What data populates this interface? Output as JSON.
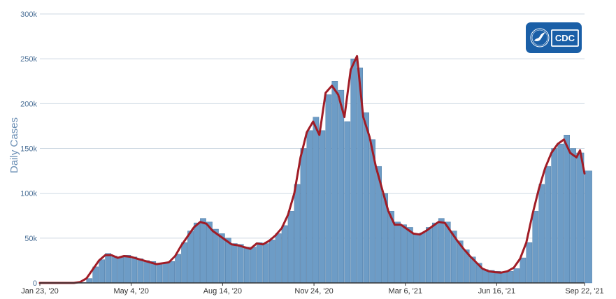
{
  "chart_data": {
    "type": "bar",
    "ylabel": "Daily Cases",
    "ylim": [
      0,
      300000
    ],
    "y_ticks": [
      "0",
      "50k",
      "100k",
      "150k",
      "200k",
      "250k",
      "300k"
    ],
    "y_tick_values": [
      0,
      50000,
      100000,
      150000,
      200000,
      250000,
      300000
    ],
    "x_range": [
      "2020-01-23",
      "2021-09-22"
    ],
    "x_ticks": [
      {
        "date": "2020-01-23",
        "label": "Jan 23, '20"
      },
      {
        "date": "2020-05-04",
        "label": "May 4, '20"
      },
      {
        "date": "2020-08-14",
        "label": "Aug 14, '20"
      },
      {
        "date": "2020-11-24",
        "label": "Nov 24, '20"
      },
      {
        "date": "2021-03-06",
        "label": "Mar 6, '21"
      },
      {
        "date": "2021-06-16",
        "label": "Jun 16, '21"
      },
      {
        "date": "2021-09-22",
        "label": "Sep 22, '21"
      }
    ],
    "grid": true,
    "colors": {
      "bars": "#6d9cc6",
      "bar_edge": "#3f6f9c",
      "average_line": "#a01c26",
      "grid": "#cfd9e3",
      "axis": "#333333"
    },
    "series": [
      {
        "type": "bar",
        "points": [
          [
            "2020-01-23",
            0
          ],
          [
            "2020-02-15",
            0
          ],
          [
            "2020-03-01",
            100
          ],
          [
            "2020-03-08",
            500
          ],
          [
            "2020-03-15",
            5000
          ],
          [
            "2020-03-22",
            18000
          ],
          [
            "2020-03-29",
            26000
          ],
          [
            "2020-04-05",
            33000
          ],
          [
            "2020-04-12",
            30000
          ],
          [
            "2020-04-19",
            29000
          ],
          [
            "2020-04-26",
            31000
          ],
          [
            "2020-05-04",
            29000
          ],
          [
            "2020-05-11",
            27000
          ],
          [
            "2020-05-18",
            25000
          ],
          [
            "2020-05-25",
            24000
          ],
          [
            "2020-06-01",
            21000
          ],
          [
            "2020-06-08",
            22000
          ],
          [
            "2020-06-15",
            24000
          ],
          [
            "2020-06-22",
            32000
          ],
          [
            "2020-06-29",
            45000
          ],
          [
            "2020-07-06",
            58000
          ],
          [
            "2020-07-13",
            67000
          ],
          [
            "2020-07-20",
            72000
          ],
          [
            "2020-07-27",
            68000
          ],
          [
            "2020-08-03",
            60000
          ],
          [
            "2020-08-10",
            55000
          ],
          [
            "2020-08-17",
            50000
          ],
          [
            "2020-08-24",
            44000
          ],
          [
            "2020-08-31",
            43000
          ],
          [
            "2020-09-07",
            40000
          ],
          [
            "2020-09-14",
            40000
          ],
          [
            "2020-09-21",
            45000
          ],
          [
            "2020-09-28",
            44000
          ],
          [
            "2020-10-05",
            48000
          ],
          [
            "2020-10-12",
            55000
          ],
          [
            "2020-10-19",
            64000
          ],
          [
            "2020-10-26",
            80000
          ],
          [
            "2020-11-02",
            110000
          ],
          [
            "2020-11-09",
            150000
          ],
          [
            "2020-11-16",
            170000
          ],
          [
            "2020-11-23",
            185000
          ],
          [
            "2020-11-30",
            170000
          ],
          [
            "2020-12-07",
            210000
          ],
          [
            "2020-12-14",
            225000
          ],
          [
            "2020-12-21",
            215000
          ],
          [
            "2020-12-28",
            180000
          ],
          [
            "2021-01-04",
            250000
          ],
          [
            "2021-01-11",
            240000
          ],
          [
            "2021-01-18",
            190000
          ],
          [
            "2021-01-25",
            160000
          ],
          [
            "2021-02-01",
            130000
          ],
          [
            "2021-02-08",
            100000
          ],
          [
            "2021-02-15",
            80000
          ],
          [
            "2021-02-22",
            68000
          ],
          [
            "2021-03-01",
            65000
          ],
          [
            "2021-03-08",
            62000
          ],
          [
            "2021-03-15",
            55000
          ],
          [
            "2021-03-22",
            56000
          ],
          [
            "2021-03-29",
            62000
          ],
          [
            "2021-04-05",
            67000
          ],
          [
            "2021-04-12",
            72000
          ],
          [
            "2021-04-19",
            68000
          ],
          [
            "2021-04-26",
            58000
          ],
          [
            "2021-05-03",
            47000
          ],
          [
            "2021-05-10",
            37000
          ],
          [
            "2021-05-17",
            29000
          ],
          [
            "2021-05-24",
            22000
          ],
          [
            "2021-05-31",
            15000
          ],
          [
            "2021-06-07",
            14000
          ],
          [
            "2021-06-14",
            13000
          ],
          [
            "2021-06-21",
            12000
          ],
          [
            "2021-06-28",
            13000
          ],
          [
            "2021-07-05",
            16000
          ],
          [
            "2021-07-12",
            28000
          ],
          [
            "2021-07-19",
            45000
          ],
          [
            "2021-07-26",
            80000
          ],
          [
            "2021-08-02",
            110000
          ],
          [
            "2021-08-09",
            130000
          ],
          [
            "2021-08-16",
            150000
          ],
          [
            "2021-08-23",
            155000
          ],
          [
            "2021-08-30",
            165000
          ],
          [
            "2021-09-06",
            150000
          ],
          [
            "2021-09-13",
            145000
          ],
          [
            "2021-09-22",
            125000
          ]
        ]
      },
      {
        "type": "line",
        "points": [
          [
            "2020-01-23",
            0
          ],
          [
            "2020-03-01",
            0
          ],
          [
            "2020-03-08",
            1000
          ],
          [
            "2020-03-15",
            5000
          ],
          [
            "2020-03-22",
            15000
          ],
          [
            "2020-03-29",
            25000
          ],
          [
            "2020-04-05",
            31000
          ],
          [
            "2020-04-12",
            31000
          ],
          [
            "2020-04-19",
            28000
          ],
          [
            "2020-04-26",
            30000
          ],
          [
            "2020-05-04",
            29000
          ],
          [
            "2020-05-11",
            27000
          ],
          [
            "2020-05-18",
            25000
          ],
          [
            "2020-05-25",
            23000
          ],
          [
            "2020-06-01",
            21000
          ],
          [
            "2020-06-08",
            22000
          ],
          [
            "2020-06-15",
            23000
          ],
          [
            "2020-06-22",
            30000
          ],
          [
            "2020-06-29",
            42000
          ],
          [
            "2020-07-06",
            52000
          ],
          [
            "2020-07-13",
            62000
          ],
          [
            "2020-07-20",
            68000
          ],
          [
            "2020-07-27",
            66000
          ],
          [
            "2020-08-03",
            58000
          ],
          [
            "2020-08-10",
            53000
          ],
          [
            "2020-08-17",
            48000
          ],
          [
            "2020-08-24",
            43000
          ],
          [
            "2020-08-31",
            42000
          ],
          [
            "2020-09-07",
            40000
          ],
          [
            "2020-09-14",
            38000
          ],
          [
            "2020-09-21",
            44000
          ],
          [
            "2020-09-28",
            43000
          ],
          [
            "2020-10-05",
            47000
          ],
          [
            "2020-10-12",
            53000
          ],
          [
            "2020-10-19",
            61000
          ],
          [
            "2020-10-26",
            76000
          ],
          [
            "2020-11-02",
            100000
          ],
          [
            "2020-11-09",
            140000
          ],
          [
            "2020-11-16",
            168000
          ],
          [
            "2020-11-23",
            180000
          ],
          [
            "2020-11-30",
            165000
          ],
          [
            "2020-12-07",
            212000
          ],
          [
            "2020-12-14",
            220000
          ],
          [
            "2020-12-21",
            210000
          ],
          [
            "2020-12-28",
            185000
          ],
          [
            "2021-01-04",
            238000
          ],
          [
            "2021-01-11",
            253000
          ],
          [
            "2021-01-18",
            185000
          ],
          [
            "2021-01-25",
            163000
          ],
          [
            "2021-02-01",
            130000
          ],
          [
            "2021-02-08",
            105000
          ],
          [
            "2021-02-15",
            80000
          ],
          [
            "2021-02-22",
            65000
          ],
          [
            "2021-03-01",
            65000
          ],
          [
            "2021-03-08",
            60000
          ],
          [
            "2021-03-15",
            55000
          ],
          [
            "2021-03-22",
            54000
          ],
          [
            "2021-03-29",
            58000
          ],
          [
            "2021-04-05",
            63000
          ],
          [
            "2021-04-12",
            68000
          ],
          [
            "2021-04-19",
            67000
          ],
          [
            "2021-04-26",
            57000
          ],
          [
            "2021-05-03",
            47000
          ],
          [
            "2021-05-10",
            38000
          ],
          [
            "2021-05-17",
            30000
          ],
          [
            "2021-05-24",
            23000
          ],
          [
            "2021-05-31",
            16000
          ],
          [
            "2021-06-07",
            13000
          ],
          [
            "2021-06-14",
            12000
          ],
          [
            "2021-06-21",
            11500
          ],
          [
            "2021-06-28",
            13000
          ],
          [
            "2021-07-05",
            17000
          ],
          [
            "2021-07-12",
            27000
          ],
          [
            "2021-07-19",
            45000
          ],
          [
            "2021-07-26",
            77000
          ],
          [
            "2021-08-02",
            105000
          ],
          [
            "2021-08-09",
            128000
          ],
          [
            "2021-08-16",
            145000
          ],
          [
            "2021-08-23",
            155000
          ],
          [
            "2021-08-30",
            160000
          ],
          [
            "2021-09-06",
            145000
          ],
          [
            "2021-09-13",
            140000
          ],
          [
            "2021-09-17",
            148000
          ],
          [
            "2021-09-22",
            122000
          ]
        ]
      }
    ]
  },
  "logo": {
    "text": "CDC",
    "colors": {
      "background": "#1a5fa7",
      "border": "#ffffff",
      "icon": "#ffffff"
    }
  }
}
